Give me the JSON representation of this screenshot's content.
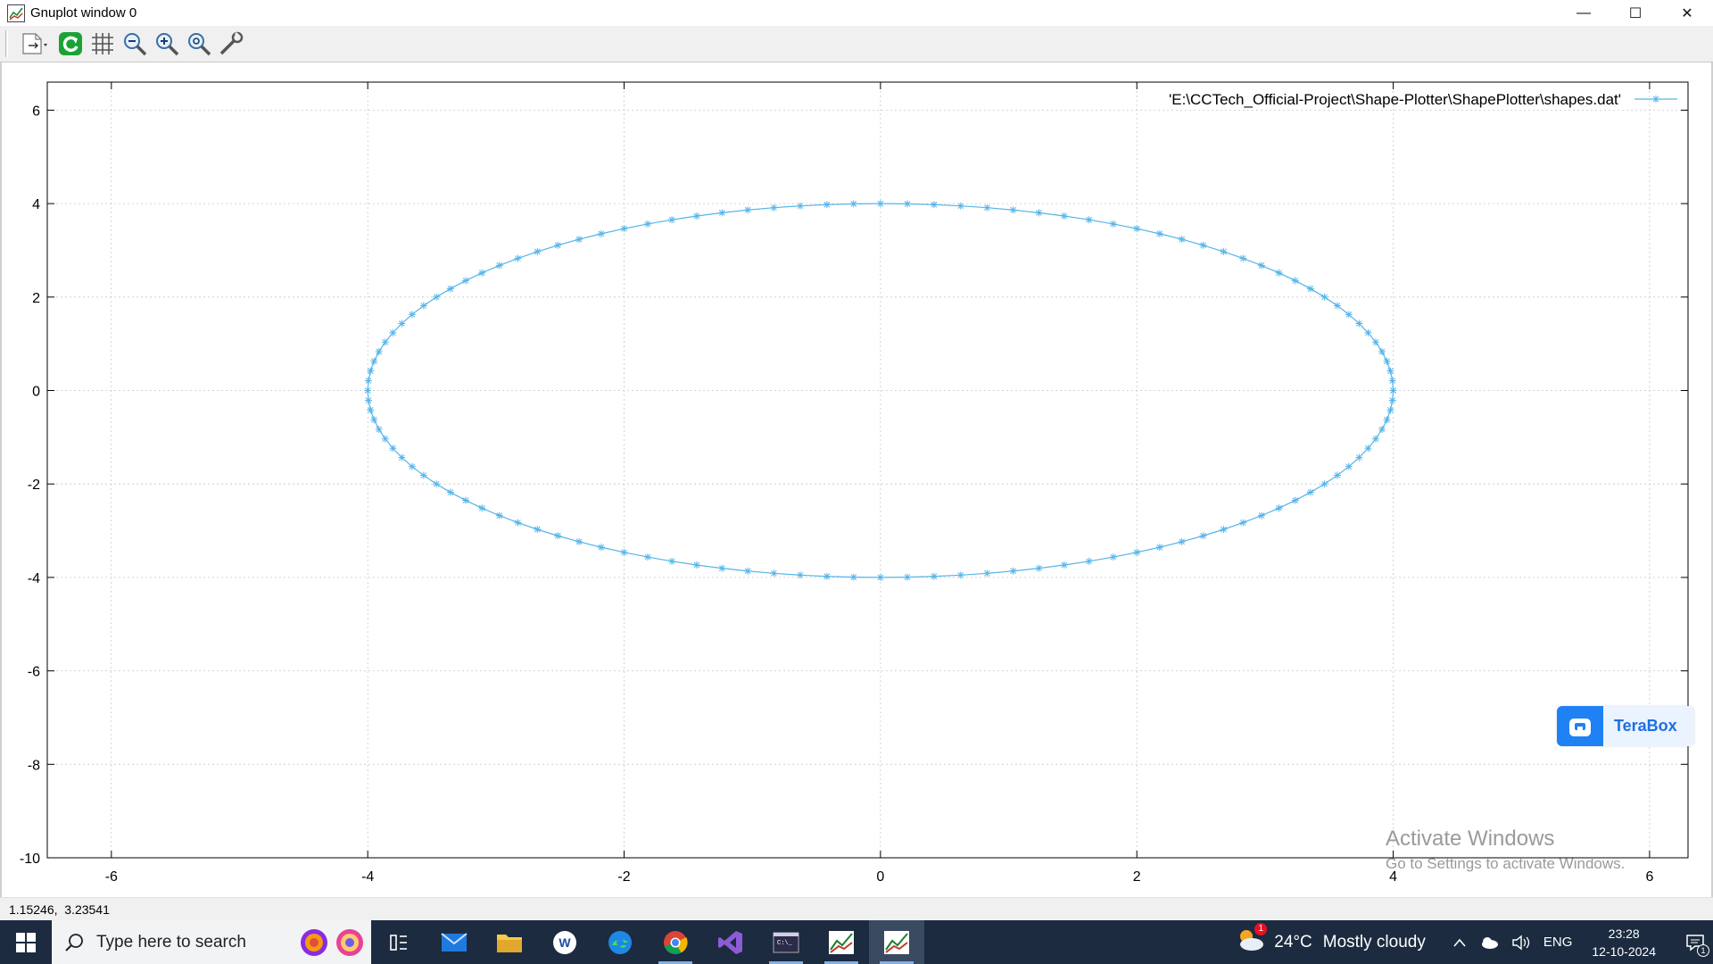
{
  "window": {
    "title": "Gnuplot window 0",
    "controls": {
      "minimize": "—",
      "maximize": "☐",
      "close": "✕"
    }
  },
  "toolbar": {
    "buttons": [
      "copy-to-clipboard-icon",
      "replot-icon",
      "grid-icon",
      "zoom-out-icon",
      "zoom-in-icon",
      "unzoom-icon",
      "options-icon"
    ]
  },
  "chart_data": {
    "type": "line",
    "title": "",
    "xlabel": "",
    "ylabel": "",
    "xlim": [
      -6.5,
      6.3
    ],
    "ylim": [
      -10,
      6.6
    ],
    "xticks": [
      -6,
      -4,
      -2,
      0,
      2,
      4,
      6
    ],
    "yticks": [
      6,
      4,
      2,
      0,
      -2,
      -4,
      -6,
      -8,
      -10
    ],
    "xtick_labels": [
      "-6",
      "-4",
      "-2",
      "0",
      "2",
      "4",
      "6"
    ],
    "ytick_labels": [
      "6",
      "4",
      "2",
      "0",
      "-2",
      "-4",
      "-6",
      "-8",
      "-10"
    ],
    "grid": true,
    "legend_position": "top-right",
    "series": [
      {
        "name": "'E:\\CCTech_Official-Project\\Shape-Plotter\\ShapePlotter\\shapes.dat'",
        "shape": "ellipse",
        "center": [
          0,
          0
        ],
        "semi_axis_x": 4,
        "semi_axis_y": 4,
        "num_points": 121,
        "marker": "star",
        "color": "#56b4e9"
      }
    ]
  },
  "colors": {
    "series": "#56b4e9",
    "grid": "#c8c8c8",
    "taskbar": "#1c2b3f"
  },
  "overlay": {
    "terabox_label": "TeraBox",
    "activate_title": "Activate Windows",
    "activate_sub": "Go to Settings to activate Windows."
  },
  "status": {
    "coordinates": "1.15246,  3.23541"
  },
  "taskbar": {
    "search_placeholder": "Type here to search",
    "weather_temp": "24°C",
    "weather_cond": "Mostly cloudy",
    "language": "ENG",
    "time": "23:28",
    "date": "12-10-2024",
    "notification_count": "1",
    "weather_badge": "1"
  }
}
